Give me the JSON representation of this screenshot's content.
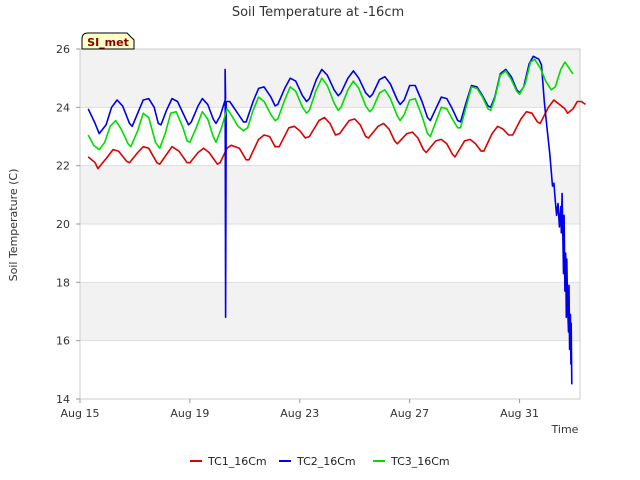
{
  "chart_data": {
    "type": "line",
    "title": "Soil Temperature at -16cm",
    "xlabel": "Time",
    "ylabel": "Soil Temperature (C)",
    "site_label": "SI_met",
    "x_unit": "days since Aug 15",
    "xlim": [
      0,
      18.2
    ],
    "ylim": [
      14,
      26
    ],
    "x_ticks": [
      {
        "value": 0,
        "label": "Aug 15"
      },
      {
        "value": 4,
        "label": "Aug 19"
      },
      {
        "value": 8,
        "label": "Aug 23"
      },
      {
        "value": 12,
        "label": "Aug 27"
      },
      {
        "value": 16,
        "label": "Aug 31"
      }
    ],
    "y_ticks": [
      {
        "value": 14,
        "label": "14"
      },
      {
        "value": 16,
        "label": "16"
      },
      {
        "value": 18,
        "label": "18"
      },
      {
        "value": 20,
        "label": "20"
      },
      {
        "value": 22,
        "label": "22"
      },
      {
        "value": 24,
        "label": "24"
      },
      {
        "value": 26,
        "label": "26"
      }
    ],
    "series": [
      {
        "name": "TC1_16Cm",
        "color": "#dd0000",
        "points": [
          [
            0.3,
            22.3
          ],
          [
            0.55,
            22.1
          ],
          [
            0.65,
            21.9
          ],
          [
            1.0,
            22.3
          ],
          [
            1.2,
            22.55
          ],
          [
            1.4,
            22.5
          ],
          [
            1.7,
            22.15
          ],
          [
            1.8,
            22.1
          ],
          [
            2.1,
            22.45
          ],
          [
            2.3,
            22.65
          ],
          [
            2.5,
            22.6
          ],
          [
            2.8,
            22.1
          ],
          [
            2.9,
            22.05
          ],
          [
            3.2,
            22.45
          ],
          [
            3.35,
            22.65
          ],
          [
            3.6,
            22.5
          ],
          [
            3.9,
            22.1
          ],
          [
            4.0,
            22.1
          ],
          [
            4.3,
            22.45
          ],
          [
            4.5,
            22.6
          ],
          [
            4.7,
            22.45
          ],
          [
            5.0,
            22.05
          ],
          [
            5.1,
            22.1
          ],
          [
            5.35,
            22.6
          ],
          [
            5.5,
            22.7
          ],
          [
            5.8,
            22.6
          ],
          [
            6.05,
            22.2
          ],
          [
            6.15,
            22.2
          ],
          [
            6.5,
            22.9
          ],
          [
            6.7,
            23.05
          ],
          [
            6.9,
            23.0
          ],
          [
            7.1,
            22.65
          ],
          [
            7.25,
            22.65
          ],
          [
            7.6,
            23.3
          ],
          [
            7.8,
            23.35
          ],
          [
            8.0,
            23.2
          ],
          [
            8.2,
            22.95
          ],
          [
            8.35,
            23.0
          ],
          [
            8.7,
            23.55
          ],
          [
            8.9,
            23.65
          ],
          [
            9.1,
            23.45
          ],
          [
            9.3,
            23.05
          ],
          [
            9.45,
            23.1
          ],
          [
            9.8,
            23.55
          ],
          [
            10.0,
            23.6
          ],
          [
            10.2,
            23.4
          ],
          [
            10.4,
            23.0
          ],
          [
            10.5,
            22.95
          ],
          [
            10.85,
            23.35
          ],
          [
            11.05,
            23.45
          ],
          [
            11.25,
            23.25
          ],
          [
            11.45,
            22.85
          ],
          [
            11.55,
            22.75
          ],
          [
            11.9,
            23.1
          ],
          [
            12.1,
            23.15
          ],
          [
            12.3,
            22.95
          ],
          [
            12.5,
            22.55
          ],
          [
            12.6,
            22.45
          ],
          [
            12.95,
            22.85
          ],
          [
            13.15,
            22.9
          ],
          [
            13.35,
            22.75
          ],
          [
            13.55,
            22.4
          ],
          [
            13.65,
            22.3
          ],
          [
            14.0,
            22.85
          ],
          [
            14.2,
            22.9
          ],
          [
            14.4,
            22.75
          ],
          [
            14.6,
            22.5
          ],
          [
            14.7,
            22.5
          ],
          [
            15.0,
            23.1
          ],
          [
            15.2,
            23.35
          ],
          [
            15.4,
            23.25
          ],
          [
            15.6,
            23.05
          ],
          [
            15.75,
            23.05
          ],
          [
            16.05,
            23.6
          ],
          [
            16.25,
            23.85
          ],
          [
            16.45,
            23.8
          ],
          [
            16.65,
            23.5
          ],
          [
            16.75,
            23.45
          ],
          [
            17.05,
            24.0
          ],
          [
            17.25,
            24.25
          ],
          [
            17.45,
            24.1
          ],
          [
            17.65,
            23.95
          ],
          [
            17.75,
            23.8
          ],
          [
            17.95,
            23.95
          ],
          [
            18.1,
            24.2
          ],
          [
            18.25,
            24.2
          ],
          [
            18.4,
            24.1
          ]
        ]
      },
      {
        "name": "TC2_16Cm",
        "color": "#0000ee",
        "points": [
          [
            0.3,
            23.95
          ],
          [
            0.55,
            23.45
          ],
          [
            0.7,
            23.1
          ],
          [
            0.95,
            23.4
          ],
          [
            1.15,
            24.0
          ],
          [
            1.35,
            24.25
          ],
          [
            1.55,
            24.05
          ],
          [
            1.8,
            23.45
          ],
          [
            1.9,
            23.35
          ],
          [
            2.1,
            23.8
          ],
          [
            2.3,
            24.25
          ],
          [
            2.5,
            24.3
          ],
          [
            2.7,
            24.0
          ],
          [
            2.85,
            23.45
          ],
          [
            2.95,
            23.4
          ],
          [
            3.15,
            23.9
          ],
          [
            3.35,
            24.3
          ],
          [
            3.55,
            24.2
          ],
          [
            3.8,
            23.7
          ],
          [
            3.95,
            23.4
          ],
          [
            4.05,
            23.5
          ],
          [
            4.3,
            24.05
          ],
          [
            4.45,
            24.3
          ],
          [
            4.65,
            24.1
          ],
          [
            4.85,
            23.6
          ],
          [
            4.95,
            23.45
          ],
          [
            5.1,
            23.7
          ],
          [
            5.3,
            24.3
          ],
          [
            5.28,
            25.3
          ],
          [
            5.3,
            16.8
          ],
          [
            5.32,
            24.2
          ],
          [
            5.45,
            24.2
          ],
          [
            5.7,
            23.85
          ],
          [
            5.95,
            23.5
          ],
          [
            6.05,
            23.5
          ],
          [
            6.3,
            24.2
          ],
          [
            6.5,
            24.65
          ],
          [
            6.7,
            24.7
          ],
          [
            6.95,
            24.35
          ],
          [
            7.1,
            24.05
          ],
          [
            7.2,
            24.1
          ],
          [
            7.45,
            24.65
          ],
          [
            7.65,
            25.0
          ],
          [
            7.85,
            24.9
          ],
          [
            8.1,
            24.4
          ],
          [
            8.25,
            24.2
          ],
          [
            8.35,
            24.3
          ],
          [
            8.6,
            24.95
          ],
          [
            8.8,
            25.3
          ],
          [
            9.0,
            25.1
          ],
          [
            9.25,
            24.6
          ],
          [
            9.4,
            24.4
          ],
          [
            9.5,
            24.5
          ],
          [
            9.75,
            25.0
          ],
          [
            9.95,
            25.25
          ],
          [
            10.15,
            25.0
          ],
          [
            10.4,
            24.5
          ],
          [
            10.55,
            24.35
          ],
          [
            10.65,
            24.45
          ],
          [
            10.9,
            24.95
          ],
          [
            11.1,
            25.05
          ],
          [
            11.3,
            24.8
          ],
          [
            11.55,
            24.25
          ],
          [
            11.65,
            24.1
          ],
          [
            11.8,
            24.25
          ],
          [
            12.0,
            24.75
          ],
          [
            12.2,
            24.75
          ],
          [
            12.45,
            24.2
          ],
          [
            12.65,
            23.65
          ],
          [
            12.75,
            23.55
          ],
          [
            12.95,
            23.95
          ],
          [
            13.15,
            24.35
          ],
          [
            13.35,
            24.3
          ],
          [
            13.55,
            23.95
          ],
          [
            13.75,
            23.55
          ],
          [
            13.85,
            23.5
          ],
          [
            14.05,
            24.15
          ],
          [
            14.25,
            24.75
          ],
          [
            14.45,
            24.7
          ],
          [
            14.65,
            24.4
          ],
          [
            14.85,
            24.05
          ],
          [
            14.95,
            24.0
          ],
          [
            15.1,
            24.35
          ],
          [
            15.3,
            25.15
          ],
          [
            15.5,
            25.3
          ],
          [
            15.7,
            25.05
          ],
          [
            15.9,
            24.6
          ],
          [
            16.0,
            24.5
          ],
          [
            16.15,
            24.7
          ],
          [
            16.35,
            25.5
          ],
          [
            16.5,
            25.75
          ],
          [
            16.7,
            25.65
          ],
          [
            16.8,
            25.45
          ],
          [
            16.9,
            24.2
          ],
          [
            17.0,
            23.3
          ],
          [
            17.1,
            22.4
          ],
          [
            17.2,
            21.3
          ],
          [
            17.25,
            21.4
          ],
          [
            17.3,
            20.8
          ],
          [
            17.35,
            20.3
          ],
          [
            17.4,
            20.7
          ],
          [
            17.45,
            19.9
          ],
          [
            17.5,
            20.6
          ],
          [
            17.52,
            19.7
          ],
          [
            17.55,
            21.05
          ],
          [
            17.6,
            18.3
          ],
          [
            17.62,
            20.3
          ],
          [
            17.65,
            17.7
          ],
          [
            17.68,
            19.0
          ],
          [
            17.7,
            16.8
          ],
          [
            17.72,
            18.8
          ],
          [
            17.75,
            17.2
          ],
          [
            17.78,
            16.3
          ],
          [
            17.8,
            17.9
          ],
          [
            17.82,
            15.7
          ],
          [
            17.85,
            16.9
          ],
          [
            17.87,
            15.2
          ],
          [
            17.88,
            16.6
          ],
          [
            17.9,
            14.5
          ]
        ]
      },
      {
        "name": "TC3_16Cm",
        "color": "#00dd00",
        "points": [
          [
            0.3,
            23.05
          ],
          [
            0.5,
            22.7
          ],
          [
            0.7,
            22.55
          ],
          [
            0.9,
            22.8
          ],
          [
            1.1,
            23.35
          ],
          [
            1.3,
            23.55
          ],
          [
            1.5,
            23.25
          ],
          [
            1.75,
            22.75
          ],
          [
            1.85,
            22.65
          ],
          [
            2.1,
            23.2
          ],
          [
            2.3,
            23.8
          ],
          [
            2.5,
            23.65
          ],
          [
            2.75,
            22.8
          ],
          [
            2.9,
            22.6
          ],
          [
            3.1,
            23.1
          ],
          [
            3.3,
            23.8
          ],
          [
            3.5,
            23.85
          ],
          [
            3.75,
            23.3
          ],
          [
            3.9,
            22.85
          ],
          [
            4.0,
            22.8
          ],
          [
            4.25,
            23.35
          ],
          [
            4.45,
            23.85
          ],
          [
            4.65,
            23.6
          ],
          [
            4.85,
            23.0
          ],
          [
            4.95,
            22.8
          ],
          [
            5.15,
            23.3
          ],
          [
            5.35,
            23.95
          ],
          [
            5.5,
            23.75
          ],
          [
            5.75,
            23.35
          ],
          [
            5.95,
            23.2
          ],
          [
            6.1,
            23.3
          ],
          [
            6.3,
            23.9
          ],
          [
            6.5,
            24.35
          ],
          [
            6.7,
            24.2
          ],
          [
            6.95,
            23.75
          ],
          [
            7.1,
            23.55
          ],
          [
            7.2,
            23.6
          ],
          [
            7.45,
            24.25
          ],
          [
            7.65,
            24.7
          ],
          [
            7.85,
            24.55
          ],
          [
            8.1,
            24.0
          ],
          [
            8.25,
            23.8
          ],
          [
            8.35,
            23.9
          ],
          [
            8.6,
            24.6
          ],
          [
            8.8,
            25.0
          ],
          [
            9.0,
            24.75
          ],
          [
            9.25,
            24.15
          ],
          [
            9.4,
            23.9
          ],
          [
            9.5,
            24.0
          ],
          [
            9.75,
            24.6
          ],
          [
            9.95,
            24.9
          ],
          [
            10.15,
            24.65
          ],
          [
            10.4,
            24.05
          ],
          [
            10.55,
            23.85
          ],
          [
            10.65,
            23.95
          ],
          [
            10.9,
            24.5
          ],
          [
            11.1,
            24.6
          ],
          [
            11.3,
            24.3
          ],
          [
            11.55,
            23.7
          ],
          [
            11.65,
            23.55
          ],
          [
            11.8,
            23.75
          ],
          [
            12.0,
            24.25
          ],
          [
            12.2,
            24.3
          ],
          [
            12.45,
            23.7
          ],
          [
            12.65,
            23.1
          ],
          [
            12.75,
            23.0
          ],
          [
            12.95,
            23.5
          ],
          [
            13.15,
            24.0
          ],
          [
            13.35,
            23.95
          ],
          [
            13.55,
            23.6
          ],
          [
            13.75,
            23.3
          ],
          [
            13.85,
            23.3
          ],
          [
            14.05,
            24.0
          ],
          [
            14.25,
            24.7
          ],
          [
            14.45,
            24.65
          ],
          [
            14.65,
            24.35
          ],
          [
            14.85,
            23.95
          ],
          [
            14.95,
            23.9
          ],
          [
            15.1,
            24.3
          ],
          [
            15.3,
            25.1
          ],
          [
            15.5,
            25.25
          ],
          [
            15.7,
            24.95
          ],
          [
            15.9,
            24.55
          ],
          [
            16.0,
            24.45
          ],
          [
            16.2,
            24.8
          ],
          [
            16.4,
            25.55
          ],
          [
            16.55,
            25.65
          ],
          [
            16.75,
            25.35
          ],
          [
            16.95,
            24.9
          ],
          [
            17.15,
            24.6
          ],
          [
            17.3,
            24.7
          ],
          [
            17.5,
            25.3
          ],
          [
            17.65,
            25.55
          ],
          [
            17.8,
            25.35
          ],
          [
            17.9,
            25.2
          ],
          [
            17.95,
            25.15
          ]
        ]
      }
    ]
  }
}
